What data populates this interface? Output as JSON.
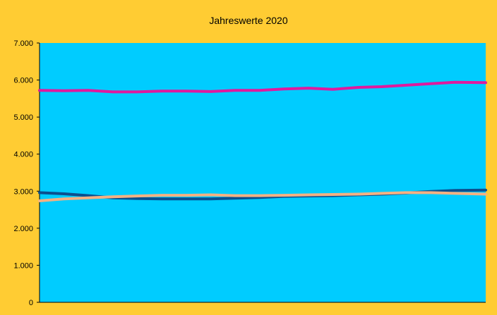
{
  "chart_data": {
    "type": "line",
    "title": "Jahreswerte  2020",
    "xlabel": "",
    "ylabel": "",
    "ylim": [
      0,
      7000
    ],
    "yticks": [
      0,
      1000,
      2000,
      3000,
      4000,
      5000,
      6000,
      7000
    ],
    "ytick_labels": [
      "0",
      "1.000",
      "2.000",
      "3.000",
      "4.000",
      "5.000",
      "6.000",
      "7.000"
    ],
    "x_count": 366,
    "grid": false,
    "legend": "none",
    "colors": {
      "background": "#FFCC33",
      "plot_area": "#00CCFF",
      "series_pink": "#E0199E",
      "series_navy": "#0B4F8E",
      "series_peach": "#F4B183"
    },
    "series": [
      {
        "color": "#E0199E",
        "x": [
          0,
          20,
          40,
          60,
          80,
          100,
          120,
          140,
          160,
          180,
          200,
          220,
          240,
          260,
          280,
          300,
          320,
          340,
          365
        ],
        "values": [
          5720,
          5710,
          5720,
          5680,
          5680,
          5700,
          5700,
          5690,
          5720,
          5720,
          5760,
          5780,
          5750,
          5800,
          5820,
          5860,
          5900,
          5940,
          5930
        ]
      },
      {
        "color": "#0B4F8E",
        "x": [
          0,
          20,
          40,
          60,
          80,
          100,
          120,
          140,
          160,
          180,
          200,
          220,
          240,
          260,
          280,
          300,
          320,
          340,
          365
        ],
        "values": [
          2960,
          2930,
          2880,
          2820,
          2800,
          2790,
          2790,
          2790,
          2810,
          2830,
          2860,
          2870,
          2880,
          2900,
          2920,
          2950,
          2990,
          3020,
          3030
        ]
      },
      {
        "color": "#F4B183",
        "x": [
          0,
          20,
          40,
          60,
          80,
          100,
          120,
          140,
          160,
          180,
          200,
          220,
          240,
          260,
          280,
          300,
          320,
          340,
          365
        ],
        "values": [
          2740,
          2790,
          2820,
          2850,
          2870,
          2890,
          2890,
          2900,
          2880,
          2880,
          2890,
          2900,
          2910,
          2920,
          2940,
          2960,
          2960,
          2940,
          2920
        ]
      }
    ]
  }
}
